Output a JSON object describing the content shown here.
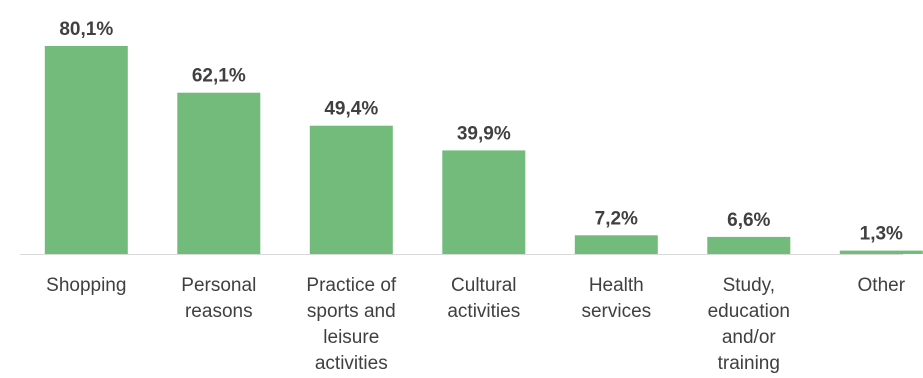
{
  "chart_data": {
    "type": "bar",
    "categories": [
      "Shopping",
      "Personal reasons",
      "Practice of sports and leisure activities",
      "Cultural activities",
      "Health services",
      "Study, education and/or training",
      "Other"
    ],
    "category_lines": [
      [
        "Shopping"
      ],
      [
        "Personal",
        "reasons"
      ],
      [
        "Practice of",
        "sports and",
        "leisure",
        "activities"
      ],
      [
        "Cultural",
        "activities"
      ],
      [
        "Health",
        "services"
      ],
      [
        "Study,",
        "education",
        "and/or",
        "training"
      ],
      [
        "Other"
      ]
    ],
    "values": [
      80.1,
      62.1,
      49.4,
      39.9,
      7.2,
      6.6,
      1.3
    ],
    "value_labels": [
      "80,1%",
      "62,1%",
      "49,4%",
      "39,9%",
      "7,2%",
      "6,6%",
      "1,3%"
    ],
    "ylim": [
      0,
      80.1
    ],
    "grid": false,
    "legend": "none",
    "colors": {
      "bar": "#72bb7b",
      "axis": "#d9d9d9",
      "text": "#404040"
    }
  }
}
